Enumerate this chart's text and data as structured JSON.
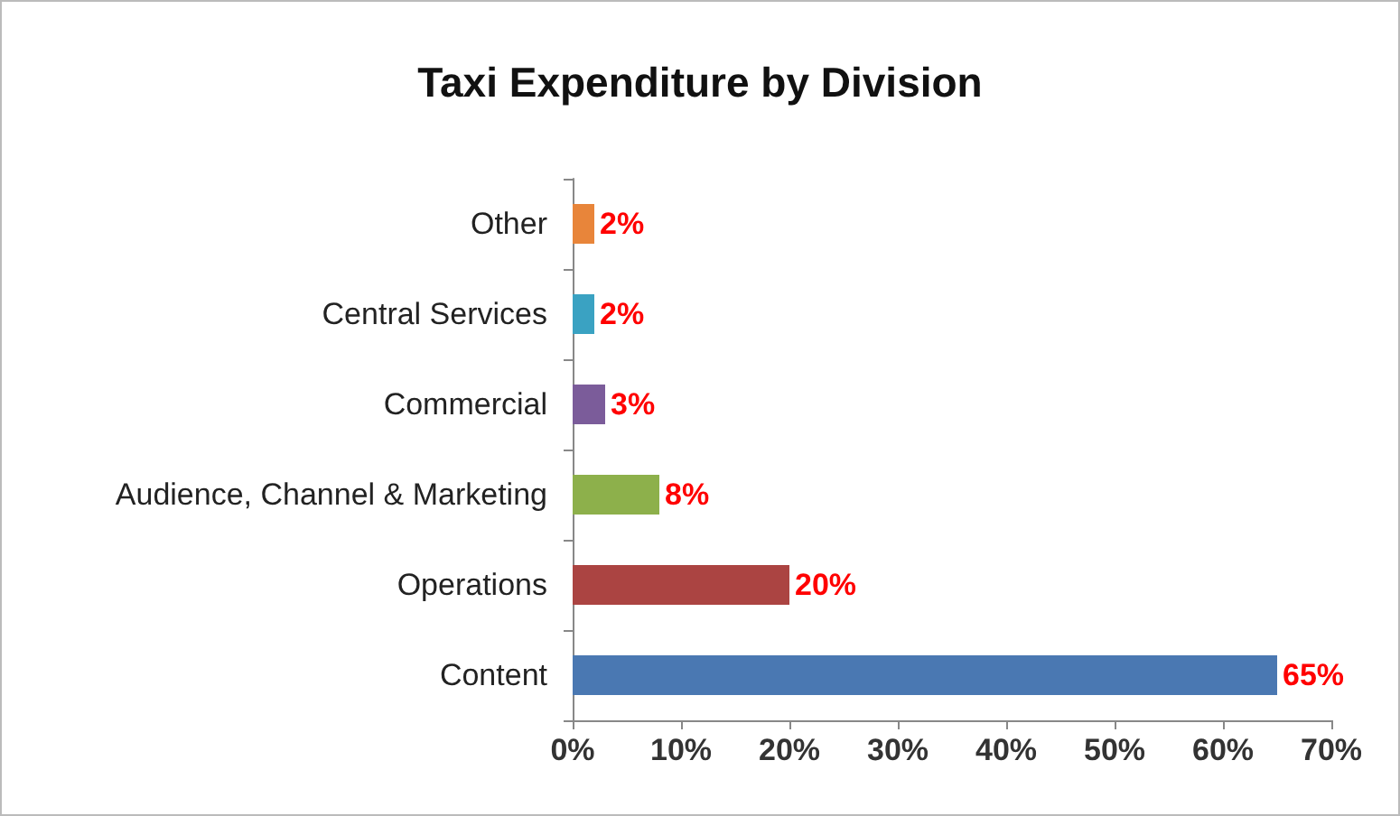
{
  "chart_data": {
    "type": "bar",
    "title": "Taxi Expenditure by Division",
    "orientation": "horizontal",
    "categories": [
      "Other",
      "Central Services",
      "Commercial",
      "Audience, Channel & Marketing",
      "Operations",
      "Content"
    ],
    "values": [
      2,
      2,
      3,
      8,
      20,
      65
    ],
    "colors": [
      "#e8853a",
      "#3aa2c2",
      "#7b5c9a",
      "#8db04b",
      "#ab4442",
      "#4a78b2"
    ],
    "value_labels": [
      "2%",
      "2%",
      "3%",
      "8%",
      "20%",
      "65%"
    ],
    "xlim": [
      0,
      70
    ],
    "xticks": [
      {
        "value": 0,
        "label": "0%"
      },
      {
        "value": 10,
        "label": "10%"
      },
      {
        "value": 20,
        "label": "20%"
      },
      {
        "value": 30,
        "label": "30%"
      },
      {
        "value": 40,
        "label": "40%"
      },
      {
        "value": 50,
        "label": "50%"
      },
      {
        "value": 60,
        "label": "60%"
      },
      {
        "value": 70,
        "label": "70%"
      }
    ],
    "grid": false
  }
}
